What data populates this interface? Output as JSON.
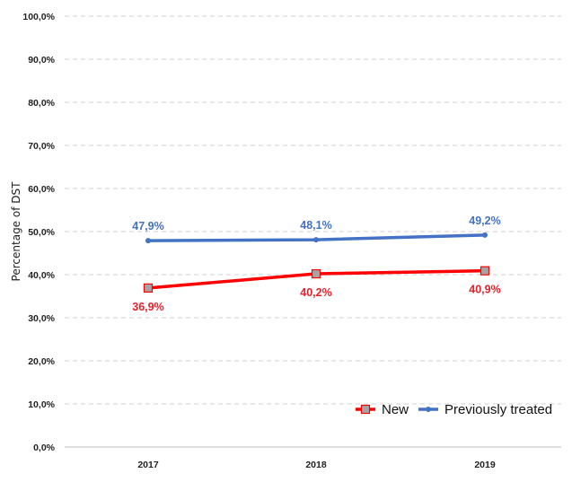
{
  "chart_data": {
    "type": "line",
    "title": "",
    "xlabel": "",
    "ylabel": "Percentage of DST",
    "categories": [
      "2017",
      "2018",
      "2019"
    ],
    "ylim": [
      0,
      100
    ],
    "yticks": [
      "0,0%",
      "10,0%",
      "20,0%",
      "30,0%",
      "40,0%",
      "50,0%",
      "60,0%",
      "70,0%",
      "80,0%",
      "90,0%",
      "100,0%"
    ],
    "grid": true,
    "legend_position": "bottom-right",
    "series": [
      {
        "name": "Previously treated",
        "values": [
          47.9,
          48.1,
          49.2
        ],
        "labels": [
          "47,9%",
          "48,1%",
          "49,2%"
        ],
        "color": "#4472C4",
        "marker": "circle",
        "label_position": "above"
      },
      {
        "name": "New",
        "values": [
          36.9,
          40.2,
          40.9
        ],
        "labels": [
          "36,9%",
          "40,2%",
          "40,9%"
        ],
        "color": "#FF0000",
        "label_color": "#E8202A",
        "marker": "square",
        "marker_fill": "#A5A5A5",
        "label_position": "below"
      }
    ],
    "legend": [
      "New",
      "Previously treated"
    ]
  }
}
